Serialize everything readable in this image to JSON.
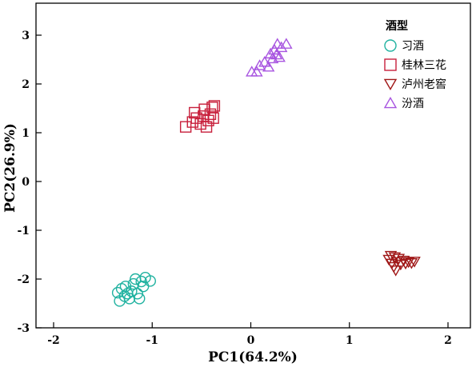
{
  "chart_data": {
    "type": "scatter",
    "xlabel": "PC1(64.2%)",
    "ylabel": "PC2(26.9%)",
    "xlim": [
      -2.4,
      2.2
    ],
    "ylim": [
      -3,
      3.35
    ],
    "xticks": [
      -2,
      -1,
      0,
      1,
      2
    ],
    "yticks": [
      -3,
      -2,
      -1,
      0,
      1,
      2,
      3
    ],
    "grid": false,
    "legend_title": "酒型",
    "legend_position": "top-right",
    "series": [
      {
        "name": "习酒",
        "marker": "circle",
        "color": "#20B2A0",
        "points": [
          [
            -1.35,
            -2.28
          ],
          [
            -1.31,
            -2.2
          ],
          [
            -1.33,
            -2.45
          ],
          [
            -1.27,
            -2.15
          ],
          [
            -1.25,
            -2.3
          ],
          [
            -1.23,
            -2.4
          ],
          [
            -1.21,
            -2.25
          ],
          [
            -1.19,
            -2.1
          ],
          [
            -1.17,
            -2.0
          ],
          [
            -1.15,
            -2.3
          ],
          [
            -1.13,
            -2.4
          ],
          [
            -1.11,
            -2.05
          ],
          [
            -1.09,
            -2.15
          ],
          [
            -1.07,
            -1.97
          ],
          [
            -1.02,
            -2.04
          ],
          [
            -1.28,
            -2.35
          ]
        ]
      },
      {
        "name": "桂林三花",
        "marker": "square",
        "color": "#C8203C",
        "points": [
          [
            -0.66,
            1.12
          ],
          [
            -0.59,
            1.22
          ],
          [
            -0.57,
            1.41
          ],
          [
            -0.55,
            1.3
          ],
          [
            -0.51,
            1.18
          ],
          [
            -0.48,
            1.34
          ],
          [
            -0.47,
            1.48
          ],
          [
            -0.45,
            1.12
          ],
          [
            -0.43,
            1.25
          ],
          [
            -0.41,
            1.38
          ],
          [
            -0.39,
            1.52
          ],
          [
            -0.38,
            1.3
          ],
          [
            -0.37,
            1.55
          ]
        ]
      },
      {
        "name": "泸州老窖",
        "marker": "triangle-down",
        "color": "#A01818",
        "points": [
          [
            1.4,
            -1.6
          ],
          [
            1.42,
            -1.52
          ],
          [
            1.43,
            -1.68
          ],
          [
            1.45,
            -1.75
          ],
          [
            1.46,
            -1.55
          ],
          [
            1.47,
            -1.82
          ],
          [
            1.48,
            -1.65
          ],
          [
            1.5,
            -1.58
          ],
          [
            1.52,
            -1.7
          ],
          [
            1.55,
            -1.62
          ],
          [
            1.57,
            -1.68
          ],
          [
            1.6,
            -1.65
          ],
          [
            1.63,
            -1.67
          ],
          [
            1.66,
            -1.64
          ]
        ]
      },
      {
        "name": "汾酒",
        "marker": "triangle-up",
        "color": "#A855E0",
        "points": [
          [
            0.01,
            2.25
          ],
          [
            0.06,
            2.25
          ],
          [
            0.09,
            2.38
          ],
          [
            0.14,
            2.45
          ],
          [
            0.18,
            2.35
          ],
          [
            0.2,
            2.62
          ],
          [
            0.22,
            2.52
          ],
          [
            0.24,
            2.7
          ],
          [
            0.26,
            2.6
          ],
          [
            0.27,
            2.82
          ],
          [
            0.29,
            2.55
          ],
          [
            0.31,
            2.75
          ],
          [
            0.36,
            2.82
          ]
        ]
      }
    ]
  }
}
